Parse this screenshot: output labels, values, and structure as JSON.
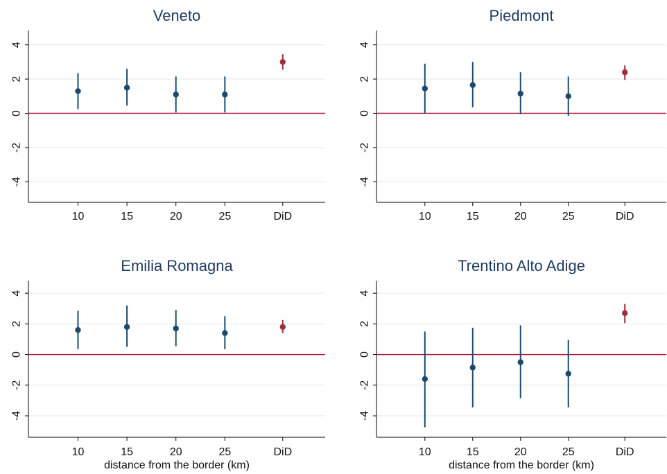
{
  "chart_data": [
    {
      "type": "scatter",
      "title": "Veneto",
      "xlabel": "",
      "categories": [
        "10",
        "15",
        "20",
        "25",
        "DiD"
      ],
      "ylim": [
        -5.2,
        5
      ],
      "yticks": [
        4,
        2,
        0,
        -2,
        -4
      ],
      "yticklabels": [
        "4",
        "2",
        "0",
        "-2",
        "-4"
      ],
      "reference_line": 0,
      "points": [
        {
          "x": "10",
          "y": 1.3,
          "lo": 0.25,
          "hi": 2.35
        },
        {
          "x": "15",
          "y": 1.5,
          "lo": 0.45,
          "hi": 2.6
        },
        {
          "x": "20",
          "y": 1.1,
          "lo": 0.05,
          "hi": 2.15
        },
        {
          "x": "25",
          "y": 1.1,
          "lo": 0.05,
          "hi": 2.15
        },
        {
          "x": "DiD",
          "y": 3.0,
          "lo": 2.55,
          "hi": 3.45
        }
      ],
      "grid": true,
      "colors": {
        "estimate": "#1c4a6e",
        "did": "#9b2f3a",
        "zero_line": "#b0163a",
        "gridline": "#e6e6e6"
      }
    },
    {
      "type": "scatter",
      "title": "Piedmont",
      "xlabel": "",
      "categories": [
        "10",
        "15",
        "20",
        "25",
        "DiD"
      ],
      "ylim": [
        -5.2,
        5
      ],
      "yticks": [
        4,
        2,
        0,
        -2,
        -4
      ],
      "yticklabels": [
        "4",
        "2",
        "0",
        "-2",
        "-4"
      ],
      "reference_line": 0,
      "points": [
        {
          "x": "10",
          "y": 1.45,
          "lo": 0.0,
          "hi": 2.9
        },
        {
          "x": "15",
          "y": 1.65,
          "lo": 0.35,
          "hi": 3.0
        },
        {
          "x": "20",
          "y": 1.15,
          "lo": -0.05,
          "hi": 2.4
        },
        {
          "x": "25",
          "y": 1.0,
          "lo": -0.15,
          "hi": 2.15
        },
        {
          "x": "DiD",
          "y": 2.4,
          "lo": 1.95,
          "hi": 2.8
        }
      ],
      "grid": true,
      "colors": {
        "estimate": "#1c4a6e",
        "did": "#9b2f3a",
        "zero_line": "#b0163a",
        "gridline": "#e6e6e6"
      }
    },
    {
      "type": "scatter",
      "title": "Emilia Romagna",
      "xlabel": "distance from the border (km)",
      "categories": [
        "10",
        "15",
        "20",
        "25",
        "DiD"
      ],
      "ylim": [
        -5.4,
        5
      ],
      "yticks": [
        4,
        2,
        0,
        -2,
        -4
      ],
      "yticklabels": [
        "4",
        "2",
        "0",
        "-2",
        "-4"
      ],
      "reference_line": 0,
      "points": [
        {
          "x": "10",
          "y": 1.6,
          "lo": 0.35,
          "hi": 2.85
        },
        {
          "x": "15",
          "y": 1.8,
          "lo": 0.5,
          "hi": 3.2
        },
        {
          "x": "20",
          "y": 1.7,
          "lo": 0.55,
          "hi": 2.9
        },
        {
          "x": "25",
          "y": 1.4,
          "lo": 0.35,
          "hi": 2.5
        },
        {
          "x": "DiD",
          "y": 1.8,
          "lo": 1.4,
          "hi": 2.25
        }
      ],
      "grid": true,
      "colors": {
        "estimate": "#1c4a6e",
        "did": "#9b2f3a",
        "zero_line": "#b0163a",
        "gridline": "#e6e6e6"
      }
    },
    {
      "type": "scatter",
      "title": "Trentino Alto Adige",
      "xlabel": "distance from the border (km)",
      "categories": [
        "10",
        "15",
        "20",
        "25",
        "DiD"
      ],
      "ylim": [
        -5.4,
        5
      ],
      "yticks": [
        4,
        2,
        0,
        -2,
        -4
      ],
      "yticklabels": [
        "4",
        "2",
        "0",
        "-2",
        "-4"
      ],
      "reference_line": 0,
      "points": [
        {
          "x": "10",
          "y": -1.6,
          "lo": -4.75,
          "hi": 1.5
        },
        {
          "x": "15",
          "y": -0.85,
          "lo": -3.45,
          "hi": 1.75
        },
        {
          "x": "20",
          "y": -0.5,
          "lo": -2.85,
          "hi": 1.9
        },
        {
          "x": "25",
          "y": -1.25,
          "lo": -3.45,
          "hi": 0.95
        },
        {
          "x": "DiD",
          "y": 2.7,
          "lo": 2.05,
          "hi": 3.3
        }
      ],
      "grid": true,
      "colors": {
        "estimate": "#1c4a6e",
        "did": "#9b2f3a",
        "zero_line": "#b0163a",
        "gridline": "#e6e6e6"
      }
    }
  ]
}
